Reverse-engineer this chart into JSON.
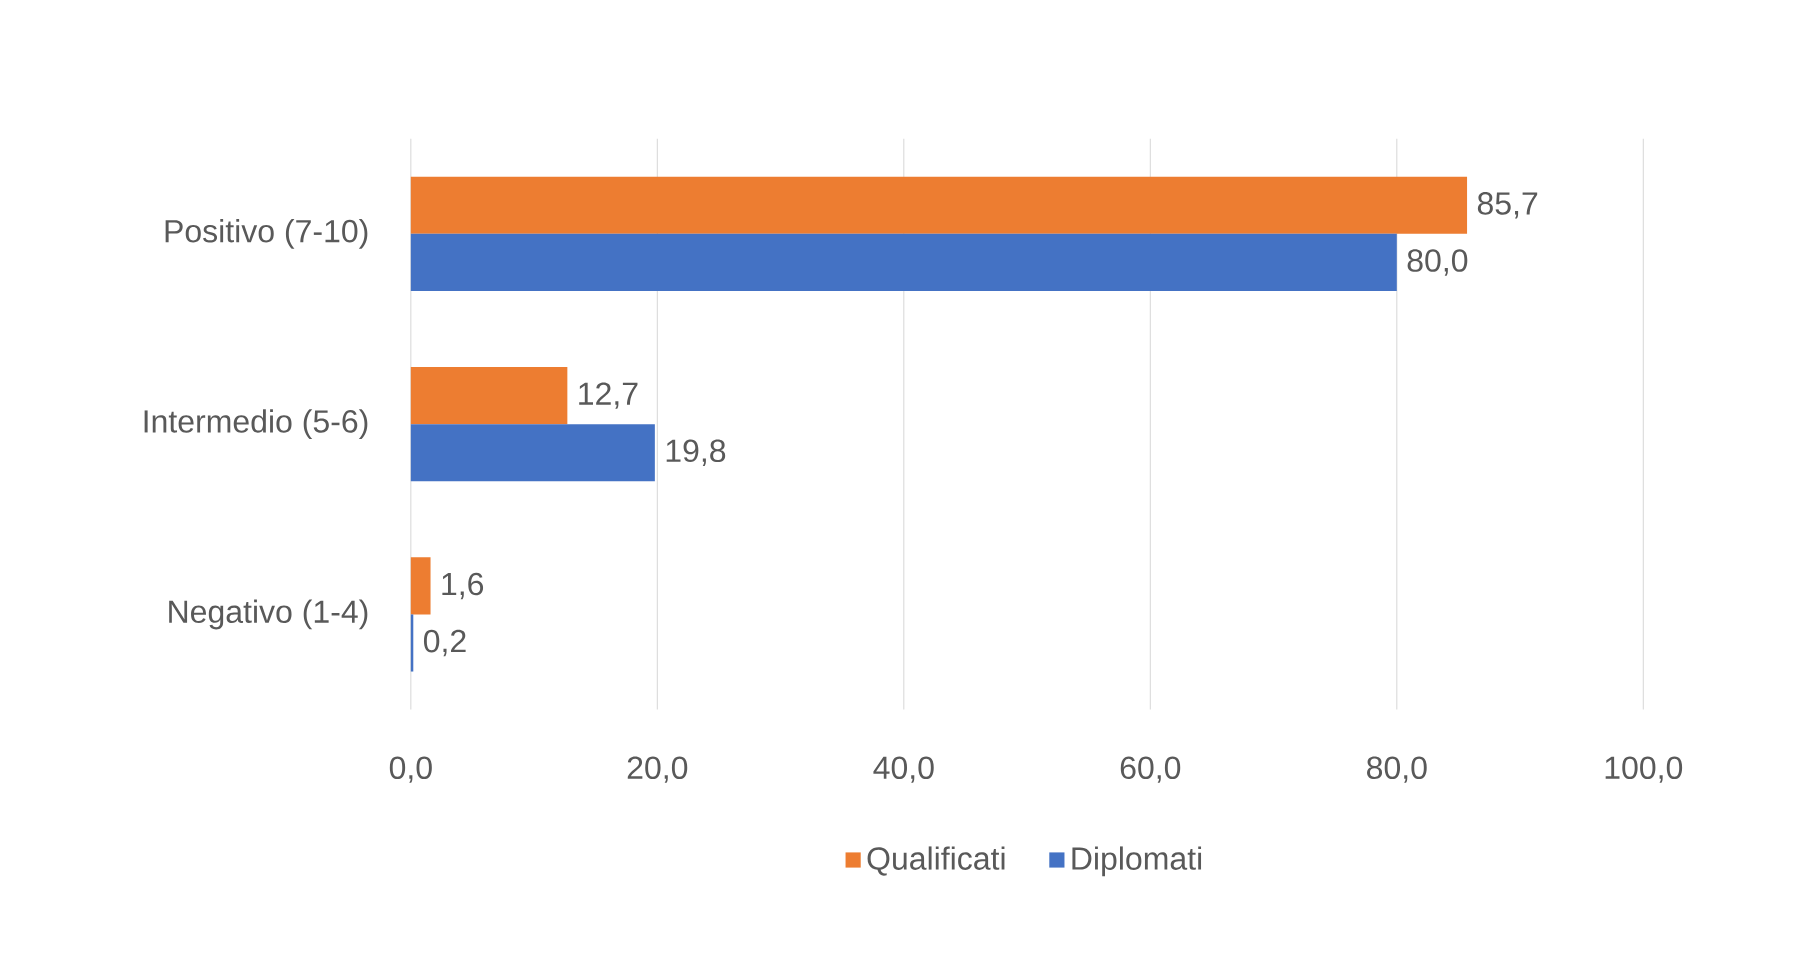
{
  "chart_data": {
    "type": "bar",
    "orientation": "horizontal",
    "categories": [
      "Positivo (7-10)",
      "Intermedio (5-6)",
      "Negativo (1-4)"
    ],
    "series": [
      {
        "name": "Qualificati",
        "color": "#ed7d31",
        "values": [
          85.7,
          12.7,
          1.6
        ],
        "value_labels": [
          "85,7",
          "12,7",
          "1,6"
        ]
      },
      {
        "name": "Diplomati",
        "color": "#4472c4",
        "values": [
          80.0,
          19.8,
          0.2
        ],
        "value_labels": [
          "80,0",
          "19,8",
          "0,2"
        ]
      }
    ],
    "xlim": [
      0,
      100
    ],
    "xticks": [
      {
        "value": 0,
        "label": "0,0"
      },
      {
        "value": 20,
        "label": "20,0"
      },
      {
        "value": 40,
        "label": "40,0"
      },
      {
        "value": 60,
        "label": "60,0"
      },
      {
        "value": 80,
        "label": "80,0"
      },
      {
        "value": 100,
        "label": "100,0"
      }
    ],
    "grid": "x",
    "legend": "bottom"
  }
}
